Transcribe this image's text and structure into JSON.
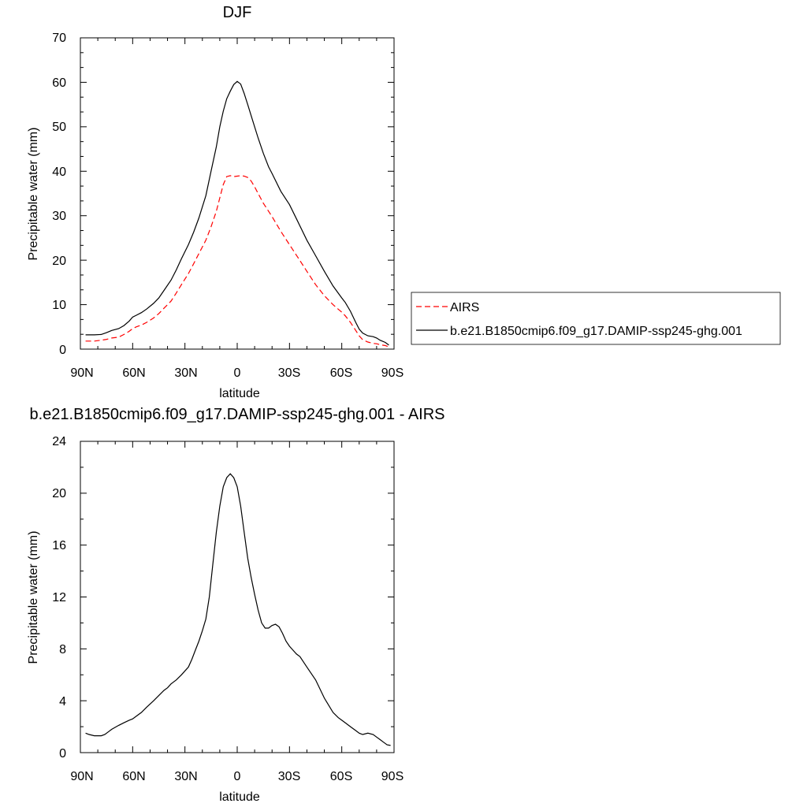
{
  "chart_data": [
    {
      "type": "line",
      "title": "DJF",
      "xlabel": "latitude",
      "ylabel": "Precipitable water (mm)",
      "xlim": [
        90,
        -90
      ],
      "ylim": [
        0,
        70
      ],
      "x_ticks": [
        90,
        60,
        30,
        0,
        -30,
        -60,
        -90
      ],
      "x_tick_labels": [
        "90N",
        "60N",
        "30N",
        "0",
        "30S",
        "60S",
        "90S"
      ],
      "y_ticks": [
        0,
        10,
        20,
        30,
        40,
        50,
        60,
        70
      ],
      "y_tick_labels": [
        "0",
        "10",
        "20",
        "30",
        "40",
        "50",
        "60",
        "70"
      ],
      "grid": false,
      "legend_position": "right, outside plot",
      "series": [
        {
          "name": "AIRS",
          "color": "#ff0000",
          "dash": "dashed",
          "x": [
            87,
            82,
            78,
            75,
            72,
            68,
            65,
            62,
            60,
            58,
            55,
            52,
            48,
            45,
            42,
            38,
            35,
            32,
            28,
            25,
            22,
            18,
            15,
            12,
            10,
            8,
            6,
            4,
            2,
            0,
            -2,
            -4,
            -6,
            -8,
            -10,
            -12,
            -15,
            -18,
            -20,
            -25,
            -30,
            -35,
            -40,
            -45,
            -50,
            -55,
            -60,
            -62,
            -65,
            -68,
            -70,
            -72,
            -75,
            -78,
            -80,
            -82,
            -85,
            -87
          ],
          "values": [
            1.8,
            1.8,
            2.0,
            2.2,
            2.5,
            2.7,
            3.3,
            4.0,
            4.6,
            5.0,
            5.4,
            6.0,
            7.0,
            8.0,
            9.2,
            10.8,
            12.6,
            14.5,
            17.0,
            19.2,
            21.5,
            24.5,
            27.5,
            31.0,
            34.0,
            37.0,
            38.8,
            39.0,
            38.8,
            38.9,
            39.0,
            38.9,
            38.6,
            37.8,
            36.5,
            35.0,
            32.8,
            31.0,
            29.8,
            26.5,
            23.5,
            20.5,
            17.5,
            14.5,
            12.0,
            10.0,
            8.3,
            7.5,
            6.0,
            4.2,
            3.0,
            2.1,
            1.6,
            1.3,
            1.2,
            1.0,
            0.8,
            0.5
          ]
        },
        {
          "name": "b.e21.B1850cmip6.f09_g17.DAMIP-ssp245-ghg.001",
          "color": "#000000",
          "dash": "solid",
          "x": [
            87,
            82,
            78,
            75,
            72,
            68,
            65,
            62,
            60,
            58,
            55,
            52,
            48,
            45,
            42,
            38,
            35,
            32,
            28,
            25,
            22,
            18,
            15,
            12,
            10,
            8,
            6,
            4,
            2,
            0,
            -2,
            -4,
            -6,
            -8,
            -10,
            -12,
            -15,
            -18,
            -20,
            -25,
            -30,
            -35,
            -40,
            -45,
            -50,
            -55,
            -60,
            -62,
            -65,
            -68,
            -70,
            -72,
            -75,
            -78,
            -80,
            -82,
            -85,
            -87
          ],
          "values": [
            3.2,
            3.2,
            3.3,
            3.7,
            4.2,
            4.6,
            5.3,
            6.3,
            7.2,
            7.6,
            8.2,
            9.0,
            10.3,
            11.5,
            13.2,
            15.5,
            17.8,
            20.3,
            23.5,
            26.3,
            29.5,
            34.5,
            40.0,
            45.5,
            50.0,
            53.5,
            56.3,
            58.0,
            59.5,
            60.2,
            59.6,
            57.5,
            55.0,
            52.5,
            50.0,
            47.5,
            44.0,
            41.0,
            39.5,
            35.5,
            32.5,
            28.5,
            24.5,
            21.0,
            17.5,
            14.2,
            11.5,
            10.5,
            8.5,
            6.0,
            4.5,
            3.6,
            3.0,
            2.8,
            2.5,
            2.0,
            1.5,
            0.9
          ]
        }
      ]
    },
    {
      "type": "line",
      "title": "b.e21.B1850cmip6.f09_g17.DAMIP-ssp245-ghg.001 - AIRS",
      "xlabel": "latitude",
      "ylabel": "Precipitable water (mm)",
      "xlim": [
        90,
        -90
      ],
      "ylim": [
        0,
        24
      ],
      "x_ticks": [
        90,
        60,
        30,
        0,
        -30,
        -60,
        -90
      ],
      "x_tick_labels": [
        "90N",
        "60N",
        "30N",
        "0",
        "30S",
        "60S",
        "90S"
      ],
      "y_ticks": [
        0,
        4,
        8,
        12,
        16,
        20,
        24
      ],
      "y_tick_labels": [
        "0",
        "4",
        "8",
        "12",
        "16",
        "20",
        "24"
      ],
      "grid": false,
      "series": [
        {
          "color": "#000000",
          "dash": "solid",
          "x": [
            87,
            85,
            82,
            80,
            78,
            76,
            74,
            72,
            68,
            65,
            62,
            60,
            58,
            55,
            52,
            48,
            45,
            42,
            40,
            38,
            35,
            32,
            30,
            28,
            26,
            24,
            22,
            20,
            18,
            16,
            14,
            12,
            10,
            8,
            6,
            4,
            2,
            0,
            -2,
            -4,
            -6,
            -8,
            -10,
            -12,
            -14,
            -16,
            -18,
            -20,
            -22,
            -24,
            -26,
            -28,
            -30,
            -32,
            -34,
            -36,
            -38,
            -40,
            -45,
            -50,
            -55,
            -58,
            -60,
            -62,
            -65,
            -68,
            -70,
            -72,
            -75,
            -78,
            -80,
            -82,
            -84,
            -86,
            -88
          ],
          "values": [
            1.5,
            1.4,
            1.3,
            1.3,
            1.3,
            1.4,
            1.6,
            1.8,
            2.1,
            2.3,
            2.5,
            2.6,
            2.8,
            3.1,
            3.5,
            4.0,
            4.4,
            4.8,
            5.0,
            5.3,
            5.6,
            6.0,
            6.3,
            6.6,
            7.2,
            7.9,
            8.6,
            9.4,
            10.3,
            12.0,
            14.5,
            17.0,
            19.0,
            20.5,
            21.2,
            21.5,
            21.2,
            20.5,
            19.0,
            17.0,
            15.0,
            13.5,
            12.2,
            11.0,
            10.0,
            9.6,
            9.6,
            9.8,
            9.9,
            9.7,
            9.2,
            8.6,
            8.2,
            7.9,
            7.6,
            7.4,
            7.0,
            6.6,
            5.6,
            4.2,
            3.1,
            2.7,
            2.5,
            2.3,
            2.0,
            1.7,
            1.5,
            1.4,
            1.5,
            1.4,
            1.2,
            1.0,
            0.8,
            0.6,
            0.55
          ]
        }
      ]
    }
  ]
}
